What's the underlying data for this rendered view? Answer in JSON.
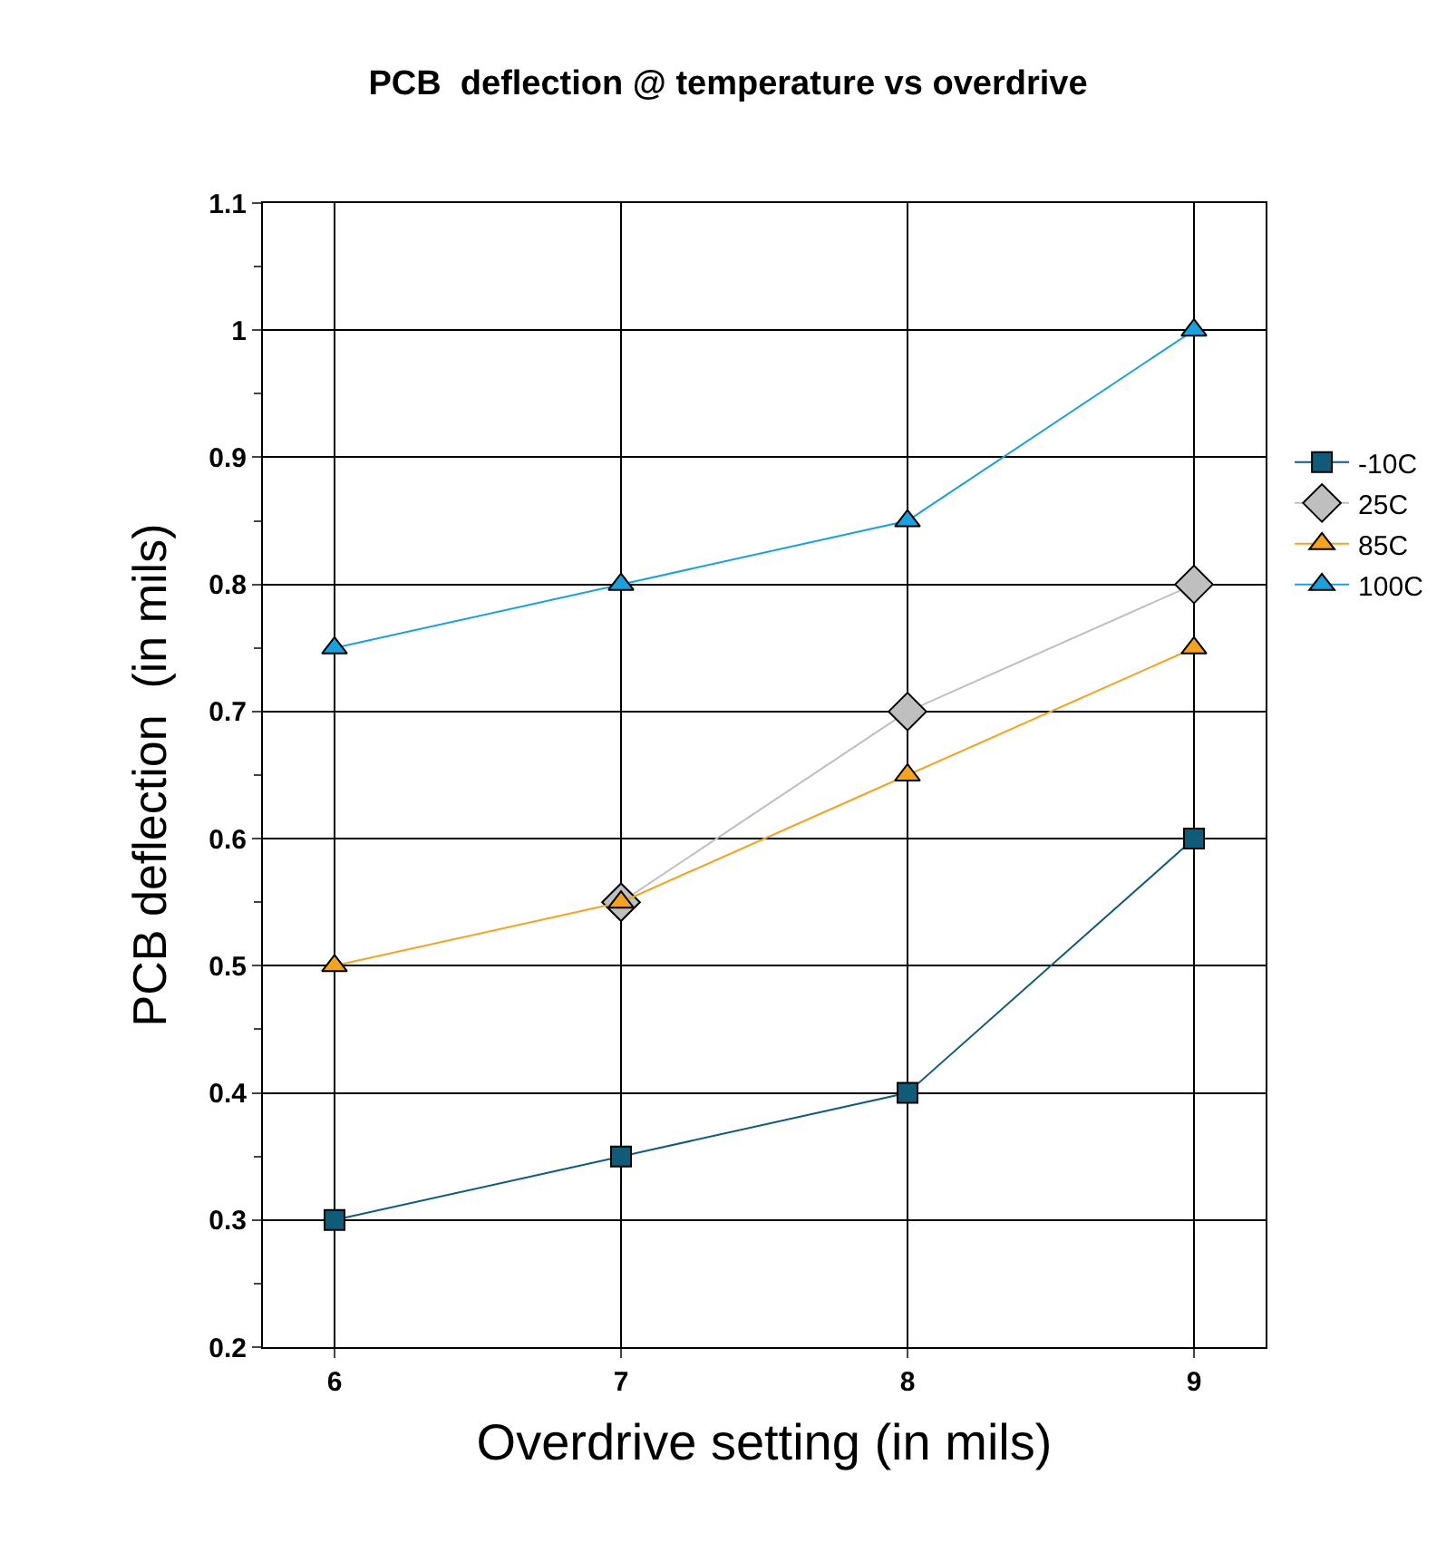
{
  "chart_data": {
    "type": "line",
    "title": "PCB  deflection @ temperature vs overdrive",
    "xlabel": "Overdrive setting (in mils)",
    "ylabel": "PCB deflection  (in mils)",
    "x": [
      6,
      7,
      8,
      9
    ],
    "xlim": [
      5.75,
      9.25
    ],
    "xticks": [
      6,
      7,
      8,
      9
    ],
    "ylim": [
      0.2,
      1.1
    ],
    "yticks": [
      0.2,
      0.3,
      0.4,
      0.5,
      0.6,
      0.7,
      0.8,
      0.9,
      1,
      1.1
    ],
    "grid": true,
    "legend": "right",
    "series": [
      {
        "name": "-10C",
        "color": "#0f5b78",
        "marker": "square",
        "values": [
          0.3,
          0.35,
          0.4,
          0.6
        ]
      },
      {
        "name": "25C",
        "color": "#bfbfbf",
        "marker": "diamond",
        "values": [
          null,
          0.55,
          0.7,
          0.8
        ]
      },
      {
        "name": "85C",
        "color": "#f5a31f",
        "marker": "triangle",
        "values": [
          0.5,
          0.55,
          0.65,
          0.75
        ]
      },
      {
        "name": "100C",
        "color": "#1aa0dc",
        "marker": "triangle",
        "values": [
          0.75,
          0.8,
          0.85,
          1
        ]
      }
    ]
  }
}
